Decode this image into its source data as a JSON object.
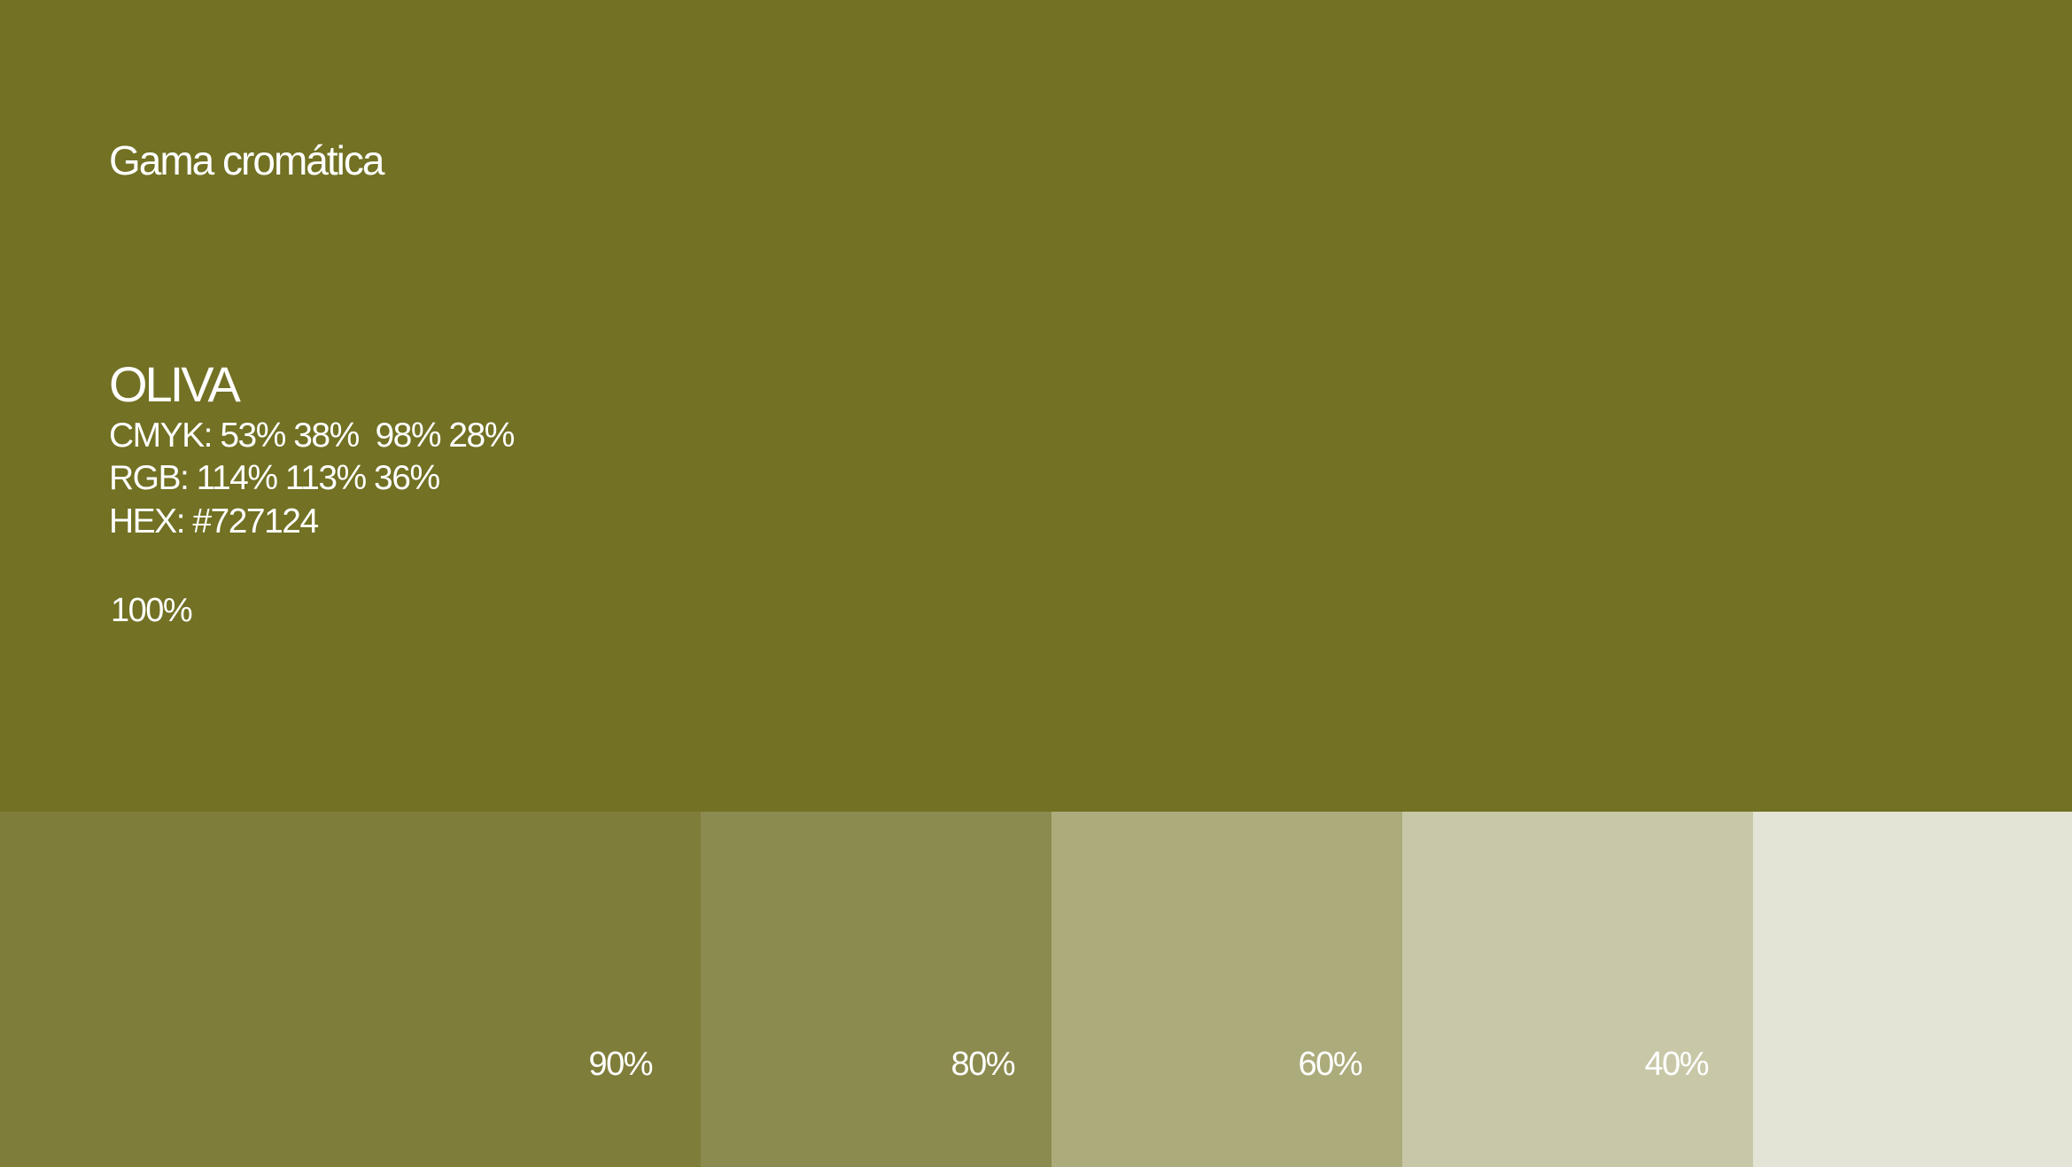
{
  "title": "Gama cromática",
  "color": {
    "name": "OLIVA",
    "cmyk": "CMYK: 53% 38%  98% 28%",
    "rgb": "RGB: 114% 113% 36%",
    "hex": "HEX: #727124",
    "percent": "100%",
    "value": "#727124"
  },
  "tints": [
    {
      "label": "90%",
      "color": "#7f7d3a",
      "level": 0.9
    },
    {
      "label": "80%",
      "color": "#8c8b4f",
      "level": 0.8
    },
    {
      "label": "60%",
      "color": "#acab7b",
      "level": 0.6
    },
    {
      "label": "40%",
      "color": "#c8c8a8",
      "level": 0.4
    },
    {
      "label": "",
      "color": "#e3e4d6",
      "level": 0.2
    }
  ]
}
